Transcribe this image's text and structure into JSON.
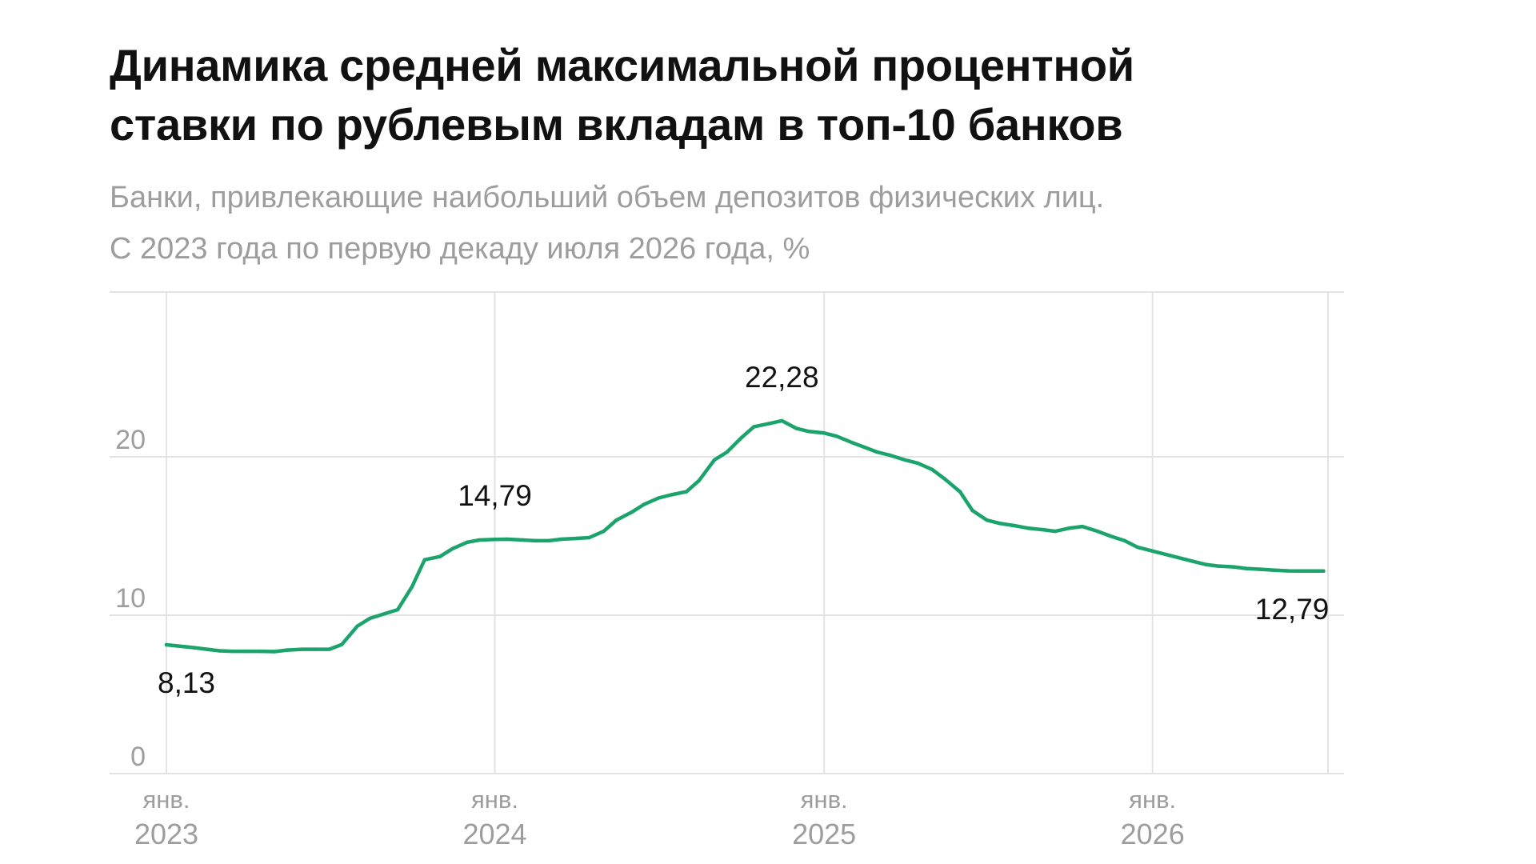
{
  "header": {
    "title_line1": "Динамика средней максимальной процентной",
    "title_line2": "ставки по рублевым вкладам в топ-10 банков",
    "subtitle_line1": "Банки, привлекающие наибольший объем депозитов физических лиц.",
    "subtitle_line2": "С 2023 года по первую декаду июля 2026 года, %"
  },
  "colors": {
    "line": "#1aa36b",
    "grid": "#e3e3e3",
    "axis_text": "#9d9d9d",
    "label_text": "#111111"
  },
  "chart_data": {
    "type": "line",
    "title": "Динамика средней максимальной процентной ставки по рублевым вкладам в топ-10 банков",
    "xlabel": "",
    "ylabel": "",
    "ylim": [
      0,
      25
    ],
    "xlim": [
      "2023-01-01",
      "2026-07-15"
    ],
    "grid": true,
    "yticks": [
      {
        "value": 0,
        "label": "0"
      },
      {
        "value": 10,
        "label": "10"
      },
      {
        "value": 20,
        "label": "20"
      }
    ],
    "xticks": [
      {
        "date": "2023-01-01",
        "month": "янв.",
        "year": "2023"
      },
      {
        "date": "2024-01-01",
        "month": "янв.",
        "year": "2024"
      },
      {
        "date": "2025-01-01",
        "month": "янв.",
        "year": "2025"
      },
      {
        "date": "2026-01-01",
        "month": "янв.",
        "year": "2026"
      }
    ],
    "series": [
      {
        "points": [
          [
            "2023-01-01",
            8.13
          ],
          [
            "2023-01-15",
            8.05
          ],
          [
            "2023-02-01",
            7.95
          ],
          [
            "2023-02-15",
            7.85
          ],
          [
            "2023-03-01",
            7.75
          ],
          [
            "2023-03-15",
            7.72
          ],
          [
            "2023-04-01",
            7.72
          ],
          [
            "2023-04-15",
            7.72
          ],
          [
            "2023-05-01",
            7.7
          ],
          [
            "2023-05-15",
            7.8
          ],
          [
            "2023-06-01",
            7.85
          ],
          [
            "2023-06-15",
            7.85
          ],
          [
            "2023-07-01",
            7.85
          ],
          [
            "2023-07-15",
            8.15
          ],
          [
            "2023-08-01",
            9.3
          ],
          [
            "2023-08-15",
            9.8
          ],
          [
            "2023-09-01",
            10.1
          ],
          [
            "2023-09-15",
            10.35
          ],
          [
            "2023-10-01",
            11.8
          ],
          [
            "2023-10-15",
            13.5
          ],
          [
            "2023-11-01",
            13.7
          ],
          [
            "2023-11-15",
            14.2
          ],
          [
            "2023-12-01",
            14.6
          ],
          [
            "2023-12-15",
            14.75
          ],
          [
            "2024-01-01",
            14.79
          ],
          [
            "2024-01-15",
            14.8
          ],
          [
            "2024-02-01",
            14.75
          ],
          [
            "2024-02-15",
            14.7
          ],
          [
            "2024-03-01",
            14.7
          ],
          [
            "2024-03-15",
            14.8
          ],
          [
            "2024-04-01",
            14.85
          ],
          [
            "2024-04-15",
            14.9
          ],
          [
            "2024-05-01",
            15.3
          ],
          [
            "2024-05-15",
            16.0
          ],
          [
            "2024-06-01",
            16.5
          ],
          [
            "2024-06-15",
            17.0
          ],
          [
            "2024-07-01",
            17.4
          ],
          [
            "2024-07-15",
            17.6
          ],
          [
            "2024-08-01",
            17.8
          ],
          [
            "2024-08-15",
            18.5
          ],
          [
            "2024-09-01",
            19.8
          ],
          [
            "2024-09-15",
            20.3
          ],
          [
            "2024-10-01",
            21.2
          ],
          [
            "2024-10-15",
            21.9
          ],
          [
            "2024-11-01",
            22.1
          ],
          [
            "2024-11-15",
            22.28
          ],
          [
            "2024-12-01",
            21.8
          ],
          [
            "2024-12-15",
            21.6
          ],
          [
            "2025-01-01",
            21.5
          ],
          [
            "2025-01-15",
            21.3
          ],
          [
            "2025-02-01",
            20.9
          ],
          [
            "2025-02-15",
            20.6
          ],
          [
            "2025-03-01",
            20.3
          ],
          [
            "2025-03-15",
            20.1
          ],
          [
            "2025-04-01",
            19.8
          ],
          [
            "2025-04-15",
            19.6
          ],
          [
            "2025-05-01",
            19.2
          ],
          [
            "2025-05-15",
            18.6
          ],
          [
            "2025-06-01",
            17.8
          ],
          [
            "2025-06-15",
            16.6
          ],
          [
            "2025-07-01",
            16.0
          ],
          [
            "2025-07-15",
            15.8
          ],
          [
            "2025-08-01",
            15.65
          ],
          [
            "2025-08-15",
            15.5
          ],
          [
            "2025-09-01",
            15.4
          ],
          [
            "2025-09-15",
            15.3
          ],
          [
            "2025-10-01",
            15.5
          ],
          [
            "2025-10-15",
            15.6
          ],
          [
            "2025-11-01",
            15.3
          ],
          [
            "2025-11-15",
            15.0
          ],
          [
            "2025-12-01",
            14.7
          ],
          [
            "2025-12-15",
            14.3
          ],
          [
            "2026-01-01",
            14.05
          ],
          [
            "2026-01-15",
            13.85
          ],
          [
            "2026-02-01",
            13.6
          ],
          [
            "2026-02-15",
            13.4
          ],
          [
            "2026-03-01",
            13.2
          ],
          [
            "2026-03-15",
            13.1
          ],
          [
            "2026-04-01",
            13.05
          ],
          [
            "2026-04-15",
            12.95
          ],
          [
            "2026-05-01",
            12.9
          ],
          [
            "2026-05-15",
            12.85
          ],
          [
            "2026-06-01",
            12.8
          ],
          [
            "2026-06-15",
            12.79
          ],
          [
            "2026-07-10",
            12.79
          ]
        ]
      }
    ],
    "annotations": [
      {
        "date": "2023-01-01",
        "value": 8.13,
        "label": "8,13",
        "placement": "below"
      },
      {
        "date": "2024-01-01",
        "value": 14.79,
        "label": "14,79",
        "placement": "above"
      },
      {
        "date": "2024-11-15",
        "value": 22.28,
        "label": "22,28",
        "placement": "above"
      },
      {
        "date": "2026-07-10",
        "value": 12.79,
        "label": "12,79",
        "placement": "below"
      }
    ]
  }
}
